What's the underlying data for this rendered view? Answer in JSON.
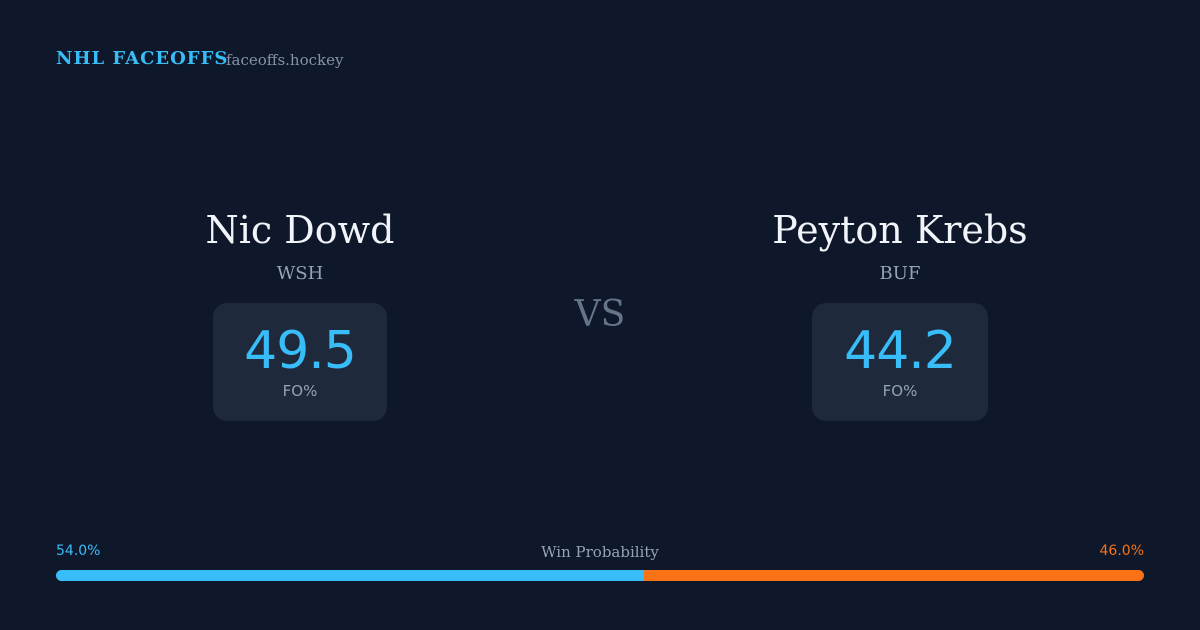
{
  "header": {
    "brand": "NHL FACEOFFS",
    "site": "faceoffs.hockey"
  },
  "players": [
    {
      "name": "Nic Dowd",
      "team": "WSH",
      "fo_pct": 49.5,
      "stat_label": "FO%"
    },
    {
      "name": "Peyton Krebs",
      "team": "BUF",
      "fo_pct": 44.2,
      "stat_label": "FO%"
    }
  ],
  "vs": "VS",
  "win_probability": {
    "label": "Win Probability",
    "values": [
      54.0,
      46.0
    ],
    "value_labels": [
      "54.0%",
      "46.0%"
    ],
    "colors": [
      "#38bdf8",
      "#f97316"
    ]
  }
}
